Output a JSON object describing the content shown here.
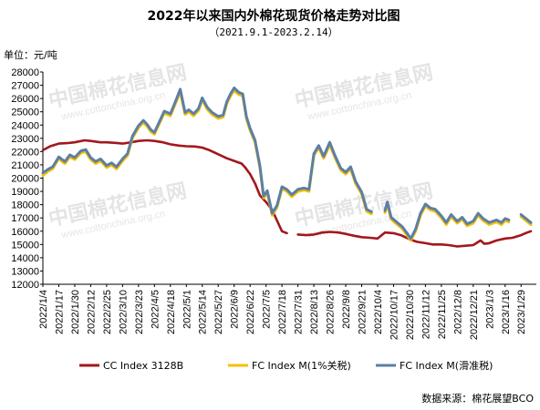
{
  "chart_data": {
    "type": "line",
    "title": "2022年以来国内外棉花现货价格走势对比图",
    "subtitle": "（2021.9.1-2023.2.14）",
    "unit_label": "单位：元/吨",
    "ylim": [
      12000,
      28000
    ],
    "y_ticks": [
      12000,
      13000,
      14000,
      15000,
      16000,
      17000,
      18000,
      19000,
      20000,
      21000,
      22000,
      23000,
      24000,
      25000,
      26000,
      27000,
      28000
    ],
    "x_range": [
      "2022-01-04",
      "2023-02-06"
    ],
    "x_tick_labels": [
      "2022/1/4",
      "2022/1/17",
      "2022/1/30",
      "2022/2/12",
      "2022/2/25",
      "2022/3/10",
      "2022/3/23",
      "2022/4/5",
      "2022/4/18",
      "2022/5/1",
      "2022/5/14",
      "2022/5/27",
      "2022/6/9",
      "2022/6/22",
      "2022/7/5",
      "2022/7/18",
      "2022/7/31",
      "2022/8/13",
      "2022/8/26",
      "2022/9/8",
      "2022/9/21",
      "2022/10/4",
      "2022/10/17",
      "2022/10/30",
      "2022/11/12",
      "2022/11/25",
      "2022/12/8",
      "2022/12/21",
      "2023/1/3",
      "2023/1/16",
      "2023/1/29"
    ],
    "series": [
      {
        "name": "CC Index 3128B",
        "color": "#a3171c",
        "points": [
          [
            "2022-01-04",
            22100
          ],
          [
            "2022-01-10",
            22400
          ],
          [
            "2022-01-17",
            22600
          ],
          [
            "2022-01-25",
            22650
          ],
          [
            "2022-01-30",
            22700
          ],
          [
            "2022-02-07",
            22850
          ],
          [
            "2022-02-12",
            22800
          ],
          [
            "2022-02-20",
            22700
          ],
          [
            "2022-02-25",
            22700
          ],
          [
            "2022-03-05",
            22650
          ],
          [
            "2022-03-10",
            22600
          ],
          [
            "2022-03-17",
            22700
          ],
          [
            "2022-03-23",
            22800
          ],
          [
            "2022-03-30",
            22850
          ],
          [
            "2022-04-05",
            22800
          ],
          [
            "2022-04-12",
            22700
          ],
          [
            "2022-04-18",
            22550
          ],
          [
            "2022-04-25",
            22450
          ],
          [
            "2022-05-01",
            22400
          ],
          [
            "2022-05-08",
            22380
          ],
          [
            "2022-05-14",
            22300
          ],
          [
            "2022-05-20",
            22100
          ],
          [
            "2022-05-27",
            21800
          ],
          [
            "2022-06-03",
            21500
          ],
          [
            "2022-06-09",
            21300
          ],
          [
            "2022-06-15",
            21100
          ],
          [
            "2022-06-18",
            20800
          ],
          [
            "2022-06-22",
            20300
          ],
          [
            "2022-06-26",
            19600
          ],
          [
            "2022-06-30",
            18700
          ],
          [
            "2022-07-05",
            18200
          ],
          [
            "2022-07-10",
            17600
          ],
          [
            "2022-07-14",
            16800
          ],
          [
            "2022-07-18",
            16000
          ],
          [
            "2022-07-22",
            15850
          ],
          [
            "2022-07-31",
            15750
          ],
          [
            "2022-08-07",
            15700
          ],
          [
            "2022-08-13",
            15750
          ],
          [
            "2022-08-20",
            15900
          ],
          [
            "2022-08-26",
            15950
          ],
          [
            "2022-09-02",
            15900
          ],
          [
            "2022-09-08",
            15800
          ],
          [
            "2022-09-15",
            15650
          ],
          [
            "2022-09-21",
            15550
          ],
          [
            "2022-09-28",
            15500
          ],
          [
            "2022-10-04",
            15450
          ],
          [
            "2022-10-10",
            15900
          ],
          [
            "2022-10-17",
            15850
          ],
          [
            "2022-10-23",
            15700
          ],
          [
            "2022-10-30",
            15400
          ],
          [
            "2022-11-05",
            15200
          ],
          [
            "2022-11-12",
            15100
          ],
          [
            "2022-11-18",
            15000
          ],
          [
            "2022-11-25",
            15000
          ],
          [
            "2022-12-01",
            14950
          ],
          [
            "2022-12-08",
            14850
          ],
          [
            "2022-12-14",
            14900
          ],
          [
            "2022-12-21",
            14950
          ],
          [
            "2022-12-27",
            15300
          ],
          [
            "2022-12-30",
            15050
          ],
          [
            "2023-01-03",
            15100
          ],
          [
            "2023-01-09",
            15300
          ],
          [
            "2023-01-16",
            15450
          ],
          [
            "2023-01-22",
            15500
          ],
          [
            "2023-01-29",
            15700
          ],
          [
            "2023-02-03",
            15900
          ],
          [
            "2023-02-06",
            16000
          ]
        ]
      },
      {
        "name": "FC Index M(1%关税)",
        "color": "#f5c000",
        "points": [
          [
            "2022-01-04",
            20200
          ],
          [
            "2022-01-08",
            20500
          ],
          [
            "2022-01-12",
            20700
          ],
          [
            "2022-01-17",
            21500
          ],
          [
            "2022-01-19",
            21300
          ],
          [
            "2022-01-22",
            21100
          ],
          [
            "2022-01-26",
            21600
          ],
          [
            "2022-01-30",
            21400
          ],
          [
            "2022-02-04",
            21900
          ],
          [
            "2022-02-08",
            22000
          ],
          [
            "2022-02-12",
            21400
          ],
          [
            "2022-02-16",
            21100
          ],
          [
            "2022-02-20",
            21300
          ],
          [
            "2022-02-25",
            20800
          ],
          [
            "2022-03-01",
            21000
          ],
          [
            "2022-03-05",
            20700
          ],
          [
            "2022-03-10",
            21300
          ],
          [
            "2022-03-14",
            21700
          ],
          [
            "2022-03-18",
            23000
          ],
          [
            "2022-03-23",
            23800
          ],
          [
            "2022-03-27",
            24200
          ],
          [
            "2022-03-30",
            23900
          ],
          [
            "2022-04-02",
            23500
          ],
          [
            "2022-04-05",
            23300
          ],
          [
            "2022-04-09",
            24100
          ],
          [
            "2022-04-13",
            24900
          ],
          [
            "2022-04-18",
            24700
          ],
          [
            "2022-04-22",
            25600
          ],
          [
            "2022-04-26",
            26500
          ],
          [
            "2022-04-30",
            24800
          ],
          [
            "2022-05-03",
            25000
          ],
          [
            "2022-05-07",
            24700
          ],
          [
            "2022-05-11",
            25100
          ],
          [
            "2022-05-14",
            25900
          ],
          [
            "2022-05-18",
            25200
          ],
          [
            "2022-05-22",
            24800
          ],
          [
            "2022-05-27",
            24500
          ],
          [
            "2022-05-31",
            24600
          ],
          [
            "2022-06-03",
            25600
          ],
          [
            "2022-06-06",
            26200
          ],
          [
            "2022-06-09",
            26600
          ],
          [
            "2022-06-13",
            26300
          ],
          [
            "2022-06-16",
            26200
          ],
          [
            "2022-06-19",
            24500
          ],
          [
            "2022-06-22",
            23600
          ],
          [
            "2022-06-26",
            22700
          ],
          [
            "2022-06-30",
            20800
          ],
          [
            "2022-07-03",
            18500
          ],
          [
            "2022-07-06",
            18900
          ],
          [
            "2022-07-10",
            17200
          ],
          [
            "2022-07-14",
            17800
          ],
          [
            "2022-07-18",
            19200
          ],
          [
            "2022-07-22",
            19000
          ],
          [
            "2022-07-26",
            18600
          ],
          [
            "2022-07-31",
            19000
          ],
          [
            "2022-08-05",
            19100
          ],
          [
            "2022-08-09",
            19000
          ],
          [
            "2022-08-13",
            21700
          ],
          [
            "2022-08-17",
            22300
          ],
          [
            "2022-08-21",
            21500
          ],
          [
            "2022-08-26",
            22500
          ],
          [
            "2022-08-30",
            21600
          ],
          [
            "2022-09-04",
            20600
          ],
          [
            "2022-09-08",
            20300
          ],
          [
            "2022-09-12",
            20700
          ],
          [
            "2022-09-16",
            19600
          ],
          [
            "2022-09-21",
            18800
          ],
          [
            "2022-09-25",
            17500
          ],
          [
            "2022-09-29",
            17300
          ],
          [
            "2022-10-10",
            17400
          ],
          [
            "2022-10-12",
            18000
          ],
          [
            "2022-10-15",
            16900
          ],
          [
            "2022-10-20",
            16500
          ],
          [
            "2022-10-24",
            16200
          ],
          [
            "2022-10-28",
            15700
          ],
          [
            "2022-10-31",
            15300
          ],
          [
            "2022-11-04",
            16000
          ],
          [
            "2022-11-08",
            17200
          ],
          [
            "2022-11-12",
            17900
          ],
          [
            "2022-11-16",
            17600
          ],
          [
            "2022-11-20",
            17500
          ],
          [
            "2022-11-25",
            17000
          ],
          [
            "2022-11-29",
            16500
          ],
          [
            "2022-12-03",
            17100
          ],
          [
            "2022-12-08",
            16600
          ],
          [
            "2022-12-12",
            16900
          ],
          [
            "2022-12-16",
            16400
          ],
          [
            "2022-12-21",
            16600
          ],
          [
            "2022-12-25",
            17200
          ],
          [
            "2022-12-29",
            16800
          ],
          [
            "2023-01-03",
            16500
          ],
          [
            "2023-01-09",
            16700
          ],
          [
            "2023-01-13",
            16500
          ],
          [
            "2023-01-16",
            16800
          ],
          [
            "2023-01-19",
            16700
          ],
          [
            "2023-01-29",
            17100
          ],
          [
            "2023-02-02",
            16800
          ],
          [
            "2023-02-06",
            16500
          ]
        ]
      },
      {
        "name": "FC Index M(滑准税)",
        "color": "#5b7fa6",
        "points": [
          [
            "2022-01-04",
            20400
          ],
          [
            "2022-01-08",
            20650
          ],
          [
            "2022-01-12",
            20850
          ],
          [
            "2022-01-17",
            21600
          ],
          [
            "2022-01-19",
            21450
          ],
          [
            "2022-01-22",
            21250
          ],
          [
            "2022-01-26",
            21750
          ],
          [
            "2022-01-30",
            21550
          ],
          [
            "2022-02-04",
            22050
          ],
          [
            "2022-02-08",
            22150
          ],
          [
            "2022-02-12",
            21550
          ],
          [
            "2022-02-16",
            21250
          ],
          [
            "2022-02-20",
            21450
          ],
          [
            "2022-02-25",
            20950
          ],
          [
            "2022-03-01",
            21150
          ],
          [
            "2022-03-05",
            20850
          ],
          [
            "2022-03-10",
            21450
          ],
          [
            "2022-03-14",
            21850
          ],
          [
            "2022-03-18",
            23150
          ],
          [
            "2022-03-23",
            23950
          ],
          [
            "2022-03-27",
            24350
          ],
          [
            "2022-03-30",
            24050
          ],
          [
            "2022-04-02",
            23650
          ],
          [
            "2022-04-05",
            23450
          ],
          [
            "2022-04-09",
            24250
          ],
          [
            "2022-04-13",
            25050
          ],
          [
            "2022-04-18",
            24850
          ],
          [
            "2022-04-22",
            25750
          ],
          [
            "2022-04-26",
            26700
          ],
          [
            "2022-04-30",
            24950
          ],
          [
            "2022-05-03",
            25150
          ],
          [
            "2022-05-07",
            24850
          ],
          [
            "2022-05-11",
            25250
          ],
          [
            "2022-05-14",
            26050
          ],
          [
            "2022-05-18",
            25350
          ],
          [
            "2022-05-22",
            24950
          ],
          [
            "2022-05-27",
            24650
          ],
          [
            "2022-05-31",
            24750
          ],
          [
            "2022-06-03",
            25750
          ],
          [
            "2022-06-06",
            26350
          ],
          [
            "2022-06-09",
            26800
          ],
          [
            "2022-06-13",
            26450
          ],
          [
            "2022-06-16",
            26350
          ],
          [
            "2022-06-19",
            24650
          ],
          [
            "2022-06-22",
            23750
          ],
          [
            "2022-06-26",
            22850
          ],
          [
            "2022-06-30",
            20950
          ],
          [
            "2022-07-03",
            18650
          ],
          [
            "2022-07-06",
            19050
          ],
          [
            "2022-07-10",
            17350
          ],
          [
            "2022-07-14",
            17950
          ],
          [
            "2022-07-18",
            19350
          ],
          [
            "2022-07-22",
            19150
          ],
          [
            "2022-07-26",
            18750
          ],
          [
            "2022-07-31",
            19150
          ],
          [
            "2022-08-05",
            19250
          ],
          [
            "2022-08-09",
            19150
          ],
          [
            "2022-08-13",
            21850
          ],
          [
            "2022-08-17",
            22450
          ],
          [
            "2022-08-21",
            21650
          ],
          [
            "2022-08-26",
            22700
          ],
          [
            "2022-08-30",
            21750
          ],
          [
            "2022-09-04",
            20750
          ],
          [
            "2022-09-08",
            20450
          ],
          [
            "2022-09-12",
            20850
          ],
          [
            "2022-09-16",
            19750
          ],
          [
            "2022-09-21",
            18950
          ],
          [
            "2022-09-25",
            17650
          ],
          [
            "2022-09-29",
            17450
          ],
          [
            "2022-10-10",
            17550
          ],
          [
            "2022-10-12",
            18200
          ],
          [
            "2022-10-15",
            17050
          ],
          [
            "2022-10-20",
            16650
          ],
          [
            "2022-10-24",
            16350
          ],
          [
            "2022-10-28",
            15850
          ],
          [
            "2022-10-31",
            15450
          ],
          [
            "2022-11-04",
            16150
          ],
          [
            "2022-11-08",
            17350
          ],
          [
            "2022-11-12",
            18050
          ],
          [
            "2022-11-16",
            17750
          ],
          [
            "2022-11-20",
            17650
          ],
          [
            "2022-11-25",
            17150
          ],
          [
            "2022-11-29",
            16650
          ],
          [
            "2022-12-03",
            17250
          ],
          [
            "2022-12-08",
            16750
          ],
          [
            "2022-12-12",
            17050
          ],
          [
            "2022-12-16",
            16550
          ],
          [
            "2022-12-21",
            16750
          ],
          [
            "2022-12-25",
            17350
          ],
          [
            "2022-12-29",
            16950
          ],
          [
            "2023-01-03",
            16650
          ],
          [
            "2023-01-09",
            16850
          ],
          [
            "2023-01-13",
            16650
          ],
          [
            "2023-01-16",
            16950
          ],
          [
            "2023-01-19",
            16850
          ],
          [
            "2023-01-29",
            17250
          ],
          [
            "2023-02-02",
            16950
          ],
          [
            "2023-02-06",
            16650
          ]
        ]
      }
    ],
    "legend_position": "bottom",
    "grid": false
  },
  "watermark": {
    "name": "中国棉花信息网",
    "site": "www.cottonchina.org.cn"
  },
  "source": "数据来源：棉花展望BCO"
}
